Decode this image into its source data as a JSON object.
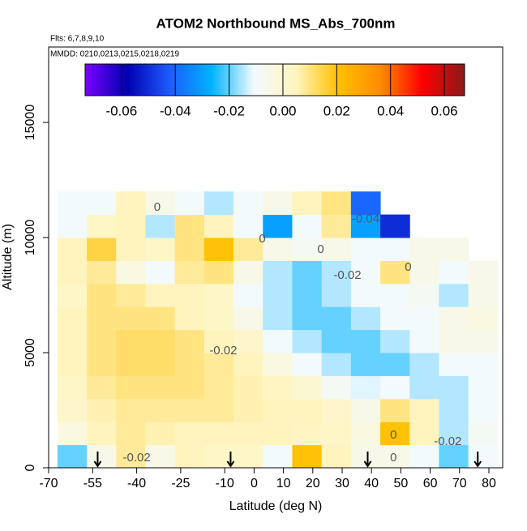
{
  "chart_data": {
    "type": "heatmap",
    "title": "ATOM2 Northbound MS_Abs_700nm",
    "subtitle": "Flts: 6,7,8,9,10",
    "note": "MMDD: 0210,0213,0215,0218,0219",
    "x_label": "Latitude (deg N)",
    "y_label": "Altitude (m)",
    "xlim": [
      -70,
      84.7
    ],
    "ylim": [
      0,
      18275
    ],
    "xticks": [
      -70,
      -55,
      -40,
      -25,
      -10,
      0,
      10,
      20,
      30,
      40,
      50,
      60,
      70,
      80
    ],
    "yticks": [
      0,
      5000,
      10000,
      15000
    ],
    "x": [
      -62,
      -52,
      -42,
      -32,
      -22,
      -12,
      -2,
      8,
      18,
      28,
      38,
      48,
      58,
      68,
      78
    ],
    "y": [
      500,
      1500,
      2500,
      3500,
      4500,
      5500,
      6500,
      7500,
      8500,
      9500,
      10500,
      11500
    ],
    "z": [
      [
        -0.02,
        -0.005,
        0.008,
        -0.005,
        0.005,
        0.003,
        0.003,
        -0.01,
        0.02,
        0.005,
        -0.005,
        -0.005,
        -0.01,
        -0.02,
        -0.01
      ],
      [
        -0.003,
        0.005,
        0.008,
        0.006,
        0.005,
        0.005,
        0.005,
        0.005,
        0.004,
        0.003,
        -0.003,
        0.02,
        0.005,
        -0.015,
        -0.008
      ],
      [
        0.002,
        0.006,
        0.008,
        0.008,
        0.008,
        0.008,
        0.006,
        0.005,
        0.005,
        0.002,
        -0.005,
        0.01,
        0.005,
        -0.015,
        -0.01
      ],
      [
        0.003,
        0.008,
        0.01,
        0.01,
        0.01,
        0.008,
        0.006,
        0.004,
        0,
        -0.008,
        -0.012,
        -0.01,
        -0.015,
        -0.015,
        -0.01
      ],
      [
        0.005,
        0.01,
        0.012,
        0.012,
        0.01,
        0.008,
        0.005,
        -0.003,
        -0.01,
        -0.015,
        -0.02,
        -0.02,
        -0.015,
        -0.01,
        -0.01
      ],
      [
        0.005,
        0.01,
        0.012,
        0.012,
        0.01,
        0.005,
        0.002,
        -0.01,
        -0.015,
        -0.02,
        -0.02,
        -0.015,
        -0.01,
        -0.005,
        -0.005
      ],
      [
        0.005,
        0.01,
        0.01,
        0.01,
        0.005,
        0.003,
        -0.005,
        -0.015,
        -0.02,
        -0.02,
        -0.015,
        -0.01,
        -0.01,
        -0.005,
        -0.003
      ],
      [
        0.003,
        0.01,
        0.008,
        0.005,
        0.005,
        0.003,
        -0.01,
        -0.015,
        -0.02,
        -0.015,
        -0.01,
        -0.01,
        -0.008,
        -0.015,
        -0.005
      ],
      [
        0.005,
        0.008,
        -0.003,
        -0.01,
        0.008,
        0.01,
        -0.005,
        -0.015,
        -0.02,
        -0.015,
        -0.01,
        0.01,
        -0.005,
        -0.01,
        -0.005
      ],
      [
        0.005,
        0.015,
        0.005,
        0.003,
        0.01,
        0.02,
        0.008,
        -0.005,
        -0.008,
        -0.005,
        -0.01,
        -0.01,
        -0.005,
        -0.005,
        null
      ],
      [
        -0.01,
        0.003,
        0.005,
        -0.015,
        0.01,
        0.005,
        -0.01,
        -0.03,
        -0.01,
        0.008,
        -0.03,
        -0.05,
        null,
        null,
        null
      ],
      [
        -0.01,
        -0.01,
        0.005,
        -0.005,
        -0.01,
        -0.015,
        -0.01,
        -0.005,
        0.005,
        0.01,
        -0.04,
        null,
        null,
        null,
        null
      ]
    ],
    "zlim": [
      -0.0735,
      0.0675
    ],
    "zticks": [
      -0.06,
      -0.04,
      -0.02,
      {
        "value": 0,
        "label": "0.00"
      },
      0.02,
      0.04,
      0.06
    ],
    "colorscale": [
      "#7a00ff",
      "#0000b0",
      "#1e5bff",
      "#00b4ff",
      "#f2faff",
      "#fff5c0",
      "#ffc000",
      "#ff8c00",
      "#ff0000",
      "#8b1a1a"
    ],
    "contour_labels": [
      {
        "text": "0",
        "x": -33,
        "y": 11300
      },
      {
        "text": "-0.04",
        "x": 38,
        "y": 10800
      },
      {
        "text": "0",
        "x": 2.8,
        "y": 9930
      },
      {
        "text": "0",
        "x": 22.7,
        "y": 9470
      },
      {
        "text": "-0.02",
        "x": 31.8,
        "y": 8350
      },
      {
        "text": "0",
        "x": 52.5,
        "y": 8700
      },
      {
        "text": "-0.02",
        "x": -10.5,
        "y": 5070
      },
      {
        "text": "0",
        "x": 47.5,
        "y": 1400
      },
      {
        "text": "-0.02",
        "x": 66,
        "y": 1130
      },
      {
        "text": "-0.02",
        "x": -40,
        "y": 420
      },
      {
        "text": "0",
        "x": 47.5,
        "y": 420
      }
    ],
    "profile_markers": [
      -53.3,
      -8,
      38.7,
      76.2
    ]
  }
}
